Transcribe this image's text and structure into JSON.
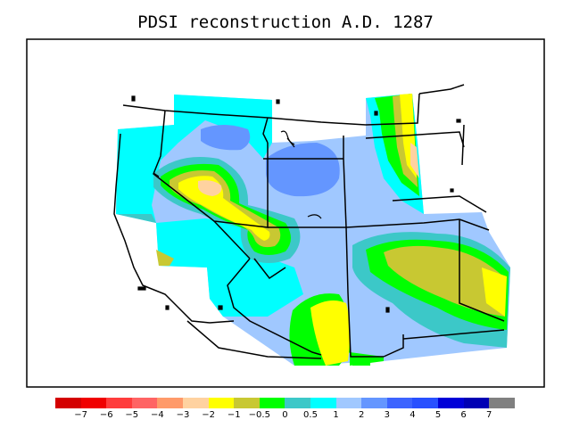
{
  "title": "PDSI reconstruction A.D. 1287",
  "legend": {
    "colors": [
      "#d40000",
      "#f00000",
      "#ff3c3c",
      "#ff6464",
      "#ff9a6a",
      "#ffd2a0",
      "#ffff00",
      "#c8c832",
      "#00ff00",
      "#3cc8c8",
      "#00ffff",
      "#a0c8ff",
      "#6496ff",
      "#3c64ff",
      "#2850ff",
      "#0000d8",
      "#0000b4",
      "#808080"
    ],
    "labels": [
      "−7",
      "−6",
      "−5",
      "−4",
      "−3",
      "−2",
      "−1",
      "−0.5",
      "0",
      "0.5",
      "1",
      "2",
      "3",
      "4",
      "5",
      "6",
      "7"
    ]
  }
}
